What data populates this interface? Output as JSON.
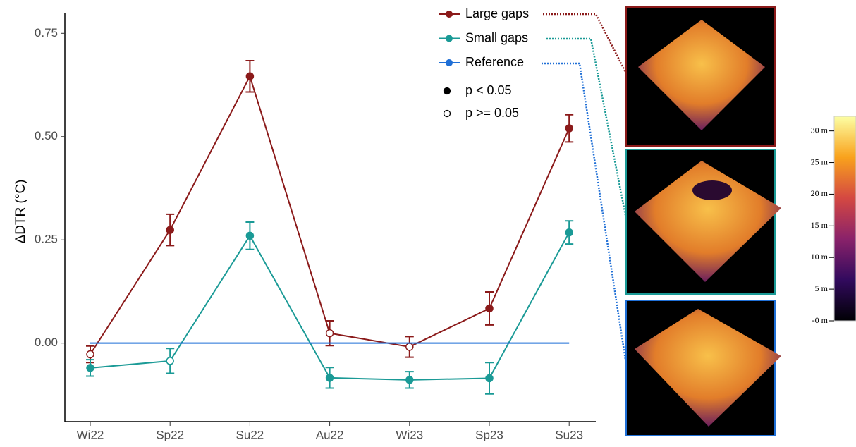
{
  "chart_data": {
    "type": "line",
    "y_label": "ΔDTR (°C)",
    "categories": [
      "Wi22",
      "Sp22",
      "Su22",
      "Au22",
      "Wi23",
      "Sp23",
      "Su23"
    ],
    "ylim": [
      -0.19,
      0.8
    ],
    "yticks": [
      {
        "value": 0,
        "label": "0.00"
      },
      0.25,
      {
        "value": 0.5,
        "label": "0.50"
      },
      0.75
    ],
    "series": [
      {
        "name": "Large gaps",
        "color": "#8b1a1a",
        "values": [
          -0.027,
          0.274,
          0.646,
          0.024,
          -0.009,
          0.084,
          0.52
        ],
        "errors": [
          0.02,
          0.038,
          0.038,
          0.03,
          0.025,
          0.04,
          0.033
        ],
        "significant": [
          false,
          true,
          true,
          false,
          false,
          true,
          true
        ]
      },
      {
        "name": "Small gaps",
        "color": "#1a9a96",
        "values": [
          -0.06,
          -0.043,
          0.26,
          -0.084,
          -0.089,
          -0.085,
          0.268
        ],
        "errors": [
          0.02,
          0.03,
          0.033,
          0.025,
          0.02,
          0.038,
          0.028
        ],
        "significant": [
          true,
          false,
          true,
          true,
          true,
          true,
          true
        ]
      },
      {
        "name": "Reference",
        "color": "#1f6fd6",
        "values": [
          0,
          0,
          0,
          0,
          0,
          0,
          0
        ]
      }
    ],
    "significance_legend": [
      {
        "label": "p < 0.05",
        "filled": true
      },
      {
        "label": "p >= 0.05",
        "filled": false
      }
    ],
    "colorbar": {
      "lim": [
        0,
        32.3
      ],
      "ticks": [
        {
          "value": 30,
          "label": "30 m"
        },
        {
          "value": 25,
          "label": "25 m"
        },
        {
          "value": 20,
          "label": "20 m"
        },
        {
          "value": 15,
          "label": "15 m"
        },
        {
          "value": 10,
          "label": "10 m"
        },
        {
          "value": 5,
          "label": "5 m"
        },
        {
          "value": 0,
          "label": "-0 m"
        }
      ]
    }
  }
}
